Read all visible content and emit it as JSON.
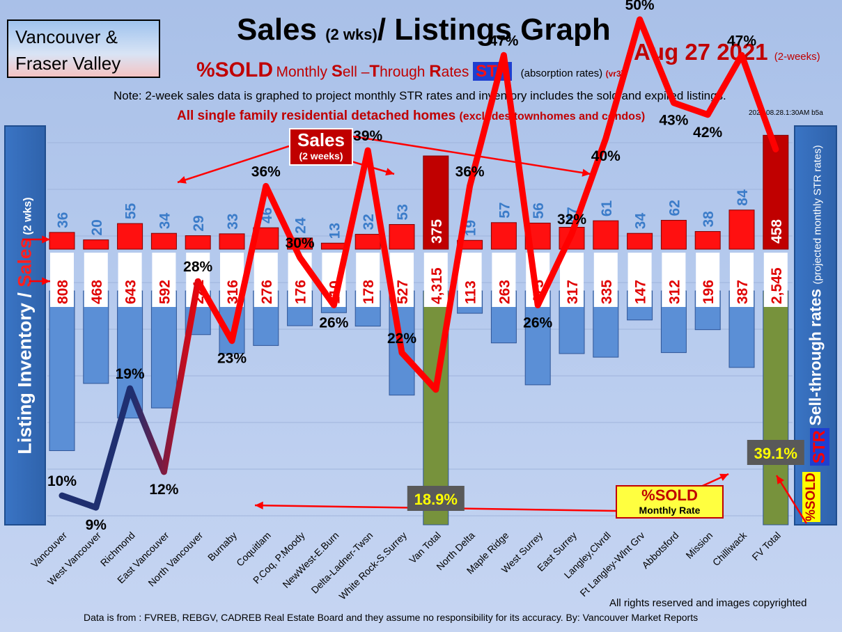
{
  "region": {
    "line1": "Vancouver &",
    "line2": "Fraser Valley"
  },
  "title": {
    "main": "Sales ",
    "paren": "(2 wks)",
    "rest": "/ Listings Graph"
  },
  "date": {
    "main": "Aug  27 2021",
    "paren": "(2-weeks)"
  },
  "subtitle": {
    "sold": "%SOLD",
    "m1": "Monthly ",
    "s": "S",
    "ell": "ell –",
    "t": "T",
    "hrough": "hrough ",
    "r": "R",
    "ates": "ates ",
    "str": "STR",
    "absorption": "(absorption rates)",
    "vr": "(vr3)"
  },
  "note": "Note: 2-week sales data is graphed to project monthly STR rates and inventory includes the sold and expired listings.",
  "homes": {
    "main": "All single family residential detached homes ",
    "paren": "(excludes townhomes and condos)"
  },
  "version": "2021.08.28.1:30AM b5a",
  "left_axis": {
    "listing": "Listing Inventory / ",
    "sales": "Sales",
    "paren": " (2  wks)"
  },
  "right_axis": {
    "main": "Sell-through rates ",
    "paren": "(projected monthly STR rates)"
  },
  "right_tags": {
    "str": "STR",
    "sold": "%SOLD"
  },
  "sales_callout": {
    "big": "Sales",
    "small": "(2 weeks)"
  },
  "sold_callout": {
    "big": "%SOLD",
    "small": "Monthly Rate"
  },
  "footer": {
    "rights": "All rights reserved and  images copyrighted",
    "source": "Data is from : FVREB, REBGV, CADREB Real Estate Board and they assume no responsibility for its accuracy. By: Vancouver Market Reports"
  },
  "colors": {
    "sales_bar": "#ff1010",
    "sales_total": "#c00000",
    "inventory_bar": "#5b8fd6",
    "inventory_total": "#77923c",
    "sales_label": "#3b7cc9",
    "line": "#ff0000",
    "line_start": "#1f2f70"
  },
  "chart_data": {
    "type": "bar",
    "categories": [
      "Vancouver",
      "West Vancouver",
      "Richmond",
      "East Vancouver",
      "North Vancouver",
      "Burnaby",
      "Coquitlam",
      "P.Coq, P.Moody",
      "NewWest-E.Burn",
      "Delta-Ladner-Twsn",
      "White Rock-S.Surrey",
      "Van Total",
      "North Delta",
      "Maple Ridge",
      "West Surrey",
      "East Surrey",
      "Langley,Clvrdl",
      "Ft Langley-Wlnt Grv",
      "Abbotsford",
      "Mission",
      "Chilliwack",
      "FV Total"
    ],
    "series": [
      {
        "name": "Sales",
        "values": [
          36,
          20,
          55,
          34,
          29,
          33,
          46,
          24,
          13,
          32,
          53,
          375,
          19,
          57,
          56,
          47,
          61,
          34,
          62,
          38,
          84,
          458
        ],
        "labels": [
          "36",
          "20",
          "55",
          "34",
          "29",
          "33",
          "46",
          "24",
          "13",
          "32",
          "53",
          "375",
          "19",
          "57",
          "56",
          "47",
          "61",
          "34",
          "62",
          "38",
          "84",
          "458"
        ]
      },
      {
        "name": "Listing Inventory",
        "values": [
          808,
          468,
          643,
          592,
          221,
          316,
          276,
          176,
          110,
          178,
          527,
          4315,
          113,
          263,
          475,
          317,
          335,
          147,
          312,
          196,
          387,
          2545
        ],
        "labels": [
          "808",
          "468",
          "643",
          "592",
          "221",
          "316",
          "276",
          "176",
          "110",
          "178",
          "527",
          "4,315",
          "113",
          "263",
          "475",
          "317",
          "335",
          "147",
          "312",
          "196",
          "387",
          "2,545"
        ]
      },
      {
        "name": "%SOLD",
        "values": [
          10,
          9,
          19,
          12,
          28,
          23,
          36,
          30,
          26,
          39,
          22,
          18.9,
          36,
          47,
          26,
          32,
          40,
          50,
          43,
          42,
          47,
          39.1
        ],
        "labels": [
          "10%",
          "9%",
          "19%",
          "12%",
          "28%",
          "23%",
          "36%",
          "30%",
          "26%",
          "39%",
          "22%",
          "18.9%",
          "36%",
          "47%",
          "26%",
          "32%",
          "40%",
          "50%",
          "43%",
          "42%",
          "47%",
          "39.1%"
        ]
      }
    ],
    "totals": [
      11,
      21
    ]
  }
}
